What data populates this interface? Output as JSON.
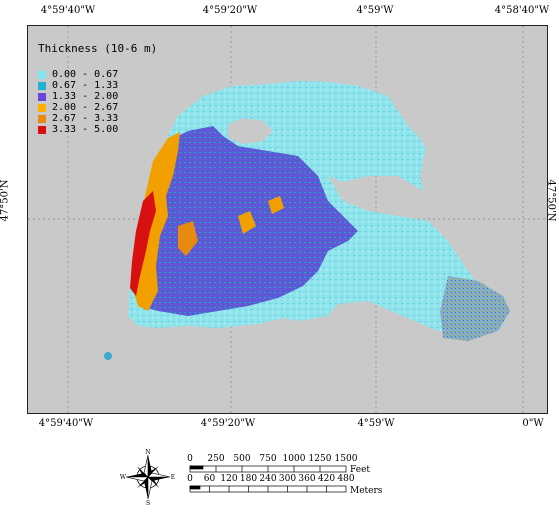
{
  "map": {
    "lon_top": [
      "4°59'40\"W",
      "4°59'20\"W",
      "4°59'W",
      "4°58'40\"W"
    ],
    "lon_bottom": [
      "4°59'40\"W",
      "4°59'20\"W",
      "4°59'W",
      "0\"W"
    ],
    "lat_left": "47°50'N",
    "lat_right": "47°50'N"
  },
  "legend": {
    "title": "Thickness (10-6 m)",
    "items": [
      {
        "label": "0.00 - 0.67",
        "color": "#7fe6f0"
      },
      {
        "label": "0.67 - 1.33",
        "color": "#1fb2d0"
      },
      {
        "label": "1.33 - 2.00",
        "color": "#6a47d8"
      },
      {
        "label": "2.00 - 2.67",
        "color": "#ffb000"
      },
      {
        "label": "2.67 - 3.33",
        "color": "#e88a10"
      },
      {
        "label": "3.33 - 5.00",
        "color": "#d81010"
      }
    ]
  },
  "scalebar": {
    "feet_ticks": [
      "0",
      "250",
      "500",
      "750",
      "1000",
      "1250",
      "1500"
    ],
    "feet_unit": "Feet",
    "meter_ticks": [
      "0",
      "60",
      "120",
      "180",
      "240",
      "300",
      "360",
      "420",
      "480"
    ],
    "meter_unit": "Meters"
  },
  "compass": {
    "n": "N",
    "s": "S",
    "e": "E",
    "w": "W"
  }
}
